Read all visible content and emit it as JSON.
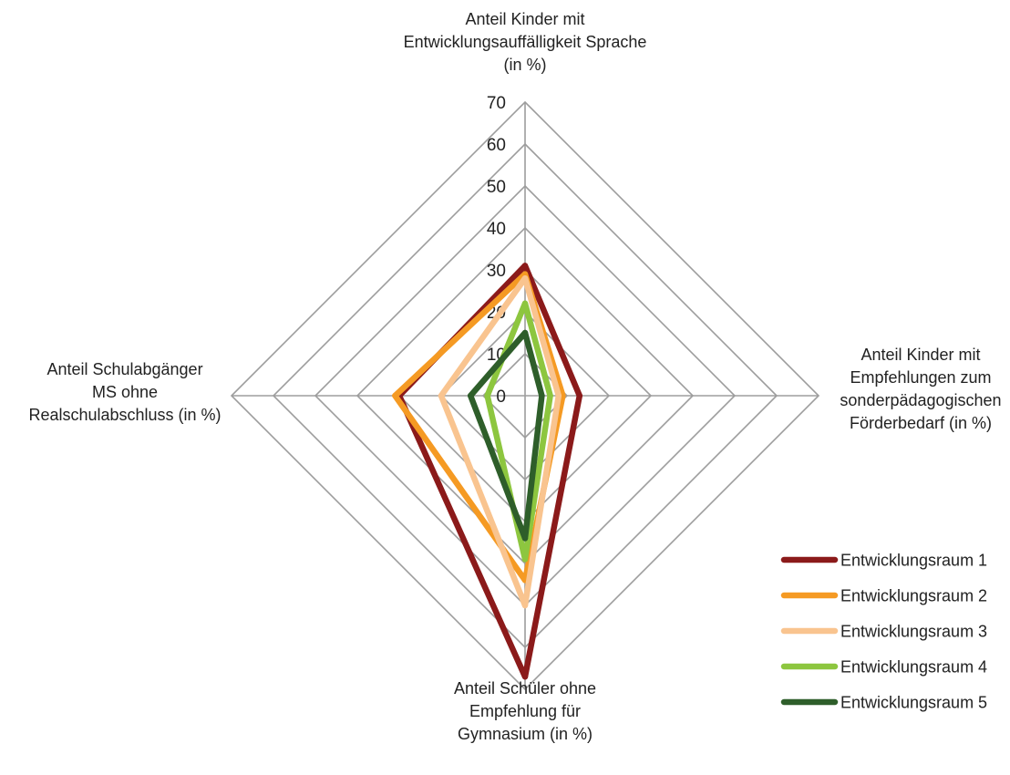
{
  "chart_data": {
    "type": "radar",
    "axes": [
      "Anteil Kinder mit Entwicklungsauffälligkeit Sprache (in %)",
      "Anteil Kinder mit Empfehlungen zum sonderpädagogischen Förderbedarf (in %)",
      "Anteil Schüler ohne Empfehlung für Gymnasium (in %)",
      "Anteil Schulabgänger MS ohne Realschulabschluss (in %)"
    ],
    "axis_label_lines": [
      [
        "Anteil Kinder mit",
        "Entwicklungsauffälligkeit Sprache",
        "(in %)"
      ],
      [
        "Anteil Kinder mit",
        "Empfehlungen zum",
        "sonderpädagogischen",
        "Förderbedarf (in %)"
      ],
      [
        "Anteil Schüler ohne",
        "Empfehlung für",
        "Gymnasium (in %)"
      ],
      [
        "Anteil Schulabgänger",
        "MS ohne",
        "Realschulabschluss (in %)"
      ]
    ],
    "range": [
      0,
      70
    ],
    "ticks": [
      0,
      10,
      20,
      30,
      40,
      50,
      60,
      70
    ],
    "grid": true,
    "legend_position": "bottom-right",
    "series": [
      {
        "name": "Entwicklungsraum 1",
        "color": "#8b1a1a",
        "values": [
          31,
          13,
          67,
          30
        ]
      },
      {
        "name": "Entwicklungsraum 2",
        "color": "#f59a23",
        "values": [
          29,
          9,
          44,
          31
        ]
      },
      {
        "name": "Entwicklungsraum 3",
        "color": "#f9c48f",
        "values": [
          28,
          8,
          50,
          20
        ]
      },
      {
        "name": "Entwicklungsraum 4",
        "color": "#8dc63f",
        "values": [
          22,
          6,
          39,
          9
        ]
      },
      {
        "name": "Entwicklungsraum 5",
        "color": "#2e5e2a",
        "values": [
          15,
          4,
          34,
          13
        ]
      }
    ]
  }
}
